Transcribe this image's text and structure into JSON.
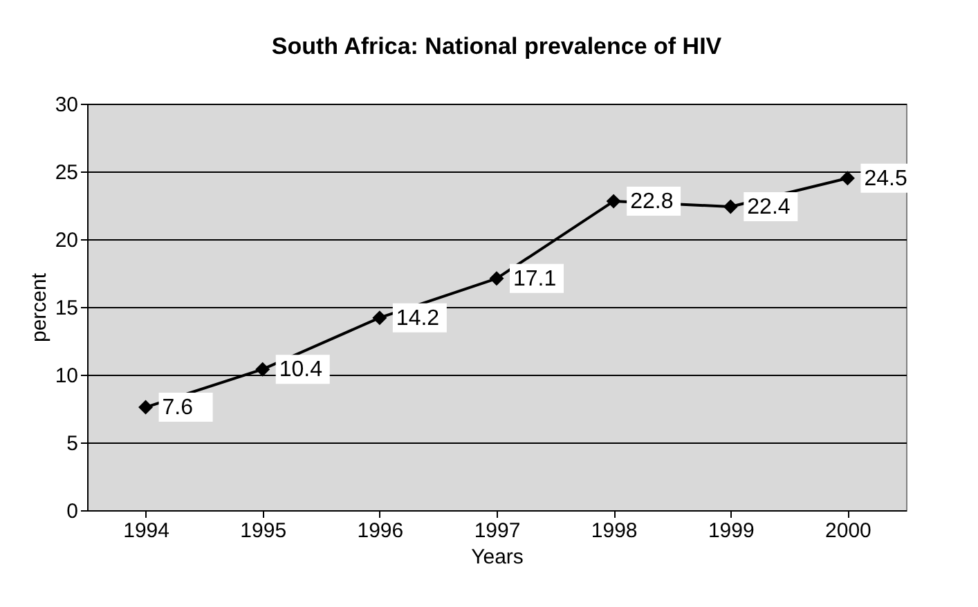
{
  "chart_data": {
    "type": "line",
    "title": "South Africa: National prevalence of HIV",
    "xlabel": "Years",
    "ylabel": "percent",
    "categories": [
      "1994",
      "1995",
      "1996",
      "1997",
      "1998",
      "1999",
      "2000"
    ],
    "series": [
      {
        "color": "#000000",
        "values": [
          7.6,
          10.4,
          14.2,
          17.1,
          22.8,
          22.4,
          24.5
        ]
      }
    ],
    "ylim": [
      0,
      30
    ],
    "yticks": [
      0,
      5,
      10,
      15,
      20,
      25,
      30
    ],
    "grid": "y",
    "marker": "diamond",
    "line_style": "solid",
    "data_labels": true
  }
}
